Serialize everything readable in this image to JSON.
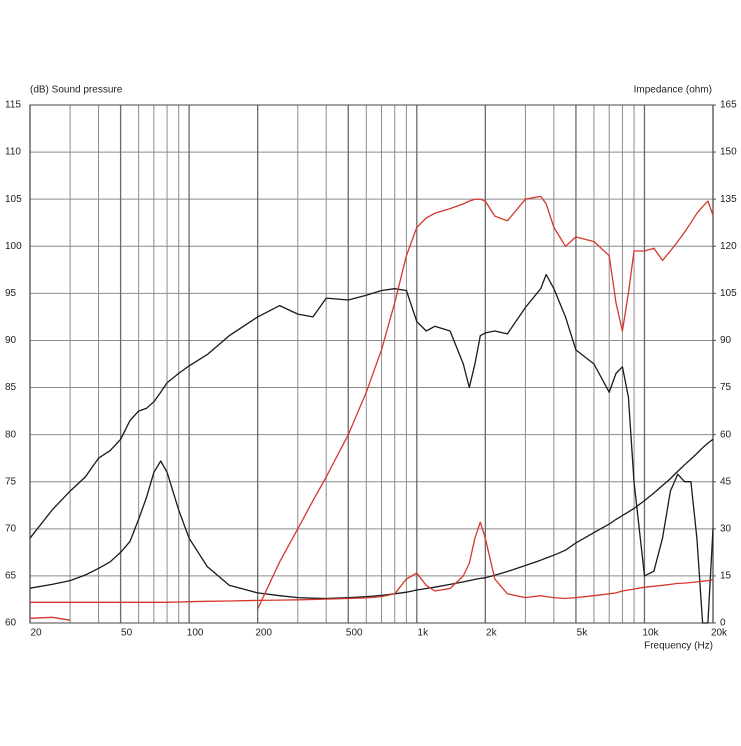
{
  "chart_data": {
    "type": "line",
    "ylabel": "(dB)  Sound pressure",
    "y2label": "Impedance  (ohm)",
    "xlabel": "Frequency  (Hz)",
    "xscale": "log",
    "grid": true,
    "xlim": [
      20,
      20000
    ],
    "ylim": [
      60,
      115
    ],
    "y2lim": [
      0,
      165
    ],
    "xticks": [
      20,
      50,
      100,
      200,
      500,
      {
        "value": 1000,
        "label": "1k"
      },
      {
        "value": 2000,
        "label": "2k"
      },
      {
        "value": 5000,
        "label": "5k"
      },
      {
        "value": 10000,
        "label": "10k"
      },
      {
        "value": 20000,
        "label": "20k"
      }
    ],
    "x_minor_ticks": [
      30,
      40,
      60,
      70,
      80,
      90,
      300,
      400,
      600,
      700,
      800,
      900,
      3000,
      4000,
      6000,
      7000,
      8000,
      9000
    ],
    "yticks": [
      60,
      65,
      70,
      75,
      80,
      85,
      90,
      95,
      100,
      105,
      110,
      115
    ],
    "y2ticks": [
      0,
      15,
      30,
      45,
      60,
      75,
      90,
      105,
      120,
      135,
      150,
      165
    ],
    "x": [
      20,
      25,
      30,
      35,
      40,
      45,
      50,
      55,
      60,
      65,
      70,
      75,
      80,
      90,
      100,
      120,
      150,
      200,
      250,
      300,
      350,
      400,
      500,
      600,
      700,
      800,
      900,
      1000,
      1100,
      1200,
      1400,
      1600,
      1700,
      1800,
      1900,
      2000,
      2200,
      2500,
      3000,
      3500,
      3700,
      4000,
      4500,
      5000,
      6000,
      7000,
      7500,
      8000,
      8500,
      9000,
      10000,
      11000,
      12000,
      13000,
      14000,
      15000,
      16000,
      17000,
      18000,
      19000,
      20000
    ],
    "series": [
      {
        "color": "#1a1a1a",
        "axis": "y",
        "values": [
          69,
          72,
          74,
          75.5,
          77.5,
          78.3,
          79.5,
          81.5,
          82.5,
          82.8,
          83.5,
          84.5,
          85.5,
          86.5,
          87.3,
          88.5,
          90.5,
          92.5,
          93.7,
          92.8,
          92.5,
          94.5,
          94.3,
          94.8,
          95.3,
          95.5,
          95.3,
          92,
          91,
          91.5,
          91,
          87.5,
          85,
          87.5,
          90.5,
          90.8,
          91,
          90.7,
          93.5,
          95.5,
          97,
          95.5,
          92.5,
          89,
          87.5,
          84.5,
          86.5,
          87.2,
          84,
          75,
          65,
          65.5,
          69,
          74,
          75.8,
          75,
          75,
          69,
          60,
          60,
          70
        ]
      },
      {
        "color": "#1a1a1a",
        "axis": "y2",
        "values": [
          11.1,
          12.3,
          13.5,
          15.3,
          17.4,
          19.5,
          22.5,
          26,
          33,
          40,
          48,
          51.6,
          48,
          36,
          27,
          18,
          12,
          9.6,
          8.7,
          8.1,
          7.9,
          7.8,
          8.1,
          8.4,
          8.8,
          9.3,
          9.8,
          10.5,
          11,
          11.4,
          12.3,
          13.1,
          13.5,
          13.9,
          14.2,
          14.4,
          15.2,
          16.4,
          18.3,
          20,
          20.7,
          21.6,
          23.2,
          25.5,
          28.8,
          31.5,
          33,
          34.2,
          35.4,
          36.5,
          39,
          41.4,
          43.8,
          46,
          48.3,
          50.4,
          52.2,
          54,
          55.8,
          57.3,
          58.5
        ]
      },
      {
        "color": "#d4382c",
        "axis": "y",
        "values": [
          60.5,
          60.6,
          60.3,
          null,
          null,
          null,
          null,
          null,
          null,
          null,
          null,
          null,
          null,
          null,
          null,
          null,
          null,
          61.5,
          66.5,
          70,
          73,
          75.5,
          80,
          84.5,
          89,
          94,
          99,
          102,
          103,
          103.5,
          104,
          104.5,
          104.8,
          105,
          105,
          104.8,
          103.2,
          102.7,
          105,
          105.3,
          104.5,
          102,
          100,
          101,
          100.5,
          99,
          94,
          91,
          95,
          99.5,
          99.5,
          99.8,
          98.5,
          99.5,
          100.5,
          101.5,
          102.5,
          103.5,
          104.2,
          104.8,
          103.3
        ]
      },
      {
        "color": "#d4382c",
        "axis": "y2",
        "values": [
          6.6,
          6.6,
          6.6,
          6.6,
          6.6,
          6.6,
          6.6,
          6.6,
          6.6,
          6.6,
          6.6,
          6.6,
          6.6,
          6.7,
          6.8,
          6.9,
          7,
          7.2,
          7.3,
          7.4,
          7.5,
          7.6,
          7.8,
          8,
          8.4,
          9.3,
          14,
          15.9,
          12,
          10.2,
          11,
          15,
          19,
          27,
          32.1,
          27,
          14,
          9.3,
          8.1,
          8.7,
          8.4,
          8.1,
          7.8,
          8.1,
          8.7,
          9.3,
          9.6,
          10.2,
          10.5,
          10.8,
          11.4,
          11.7,
          12,
          12.3,
          12.6,
          12.7,
          12.9,
          13.1,
          13.3,
          13.5,
          13.8
        ]
      }
    ]
  }
}
